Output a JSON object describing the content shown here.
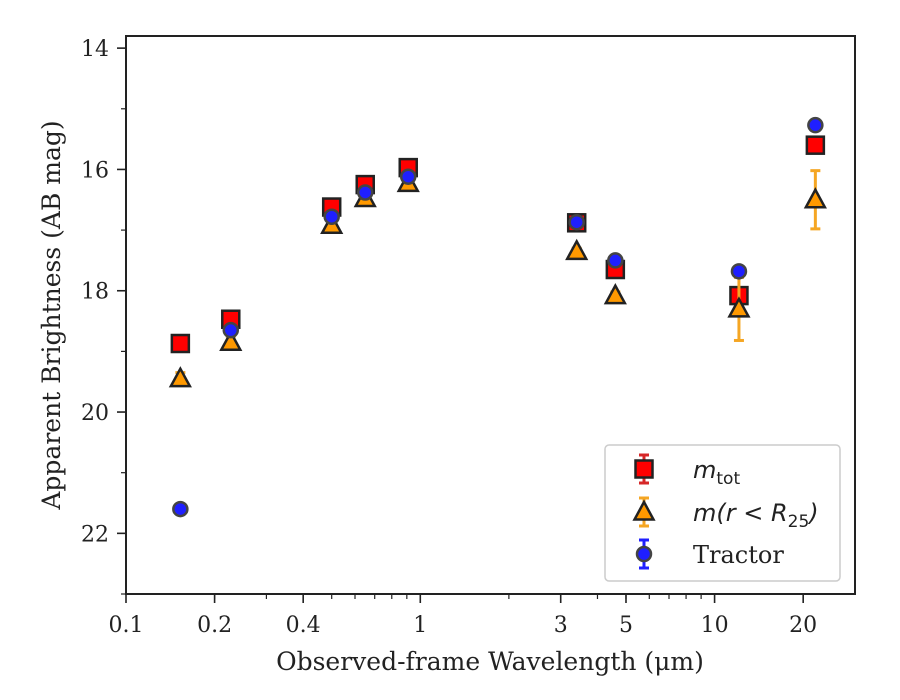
{
  "chart_data": {
    "type": "scatter",
    "title": "",
    "xlabel": "Observed-frame Wavelength (μm)",
    "ylabel": "Apparent Brightness (AB mag)",
    "xscale": "log",
    "xlim": [
      0.1,
      30
    ],
    "ylim": [
      23,
      13.8
    ],
    "y_inverted": true,
    "grid": false,
    "legend_position": "lower-right",
    "x_ticks": [
      {
        "value": 0.1,
        "label": "0.1"
      },
      {
        "value": 0.2,
        "label": "0.2"
      },
      {
        "value": 0.4,
        "label": "0.4"
      },
      {
        "value": 1,
        "label": "1"
      },
      {
        "value": 3,
        "label": "3"
      },
      {
        "value": 5,
        "label": "5"
      },
      {
        "value": 10,
        "label": "10"
      },
      {
        "value": 20,
        "label": "20"
      }
    ],
    "y_ticks": [
      {
        "value": 14,
        "label": "14"
      },
      {
        "value": 16,
        "label": "16"
      },
      {
        "value": 18,
        "label": "18"
      },
      {
        "value": 20,
        "label": "20"
      },
      {
        "value": 22,
        "label": "22"
      }
    ],
    "series": [
      {
        "name": "m_tot",
        "legend_main": "m",
        "legend_sub": "tot",
        "marker": "square",
        "color": "#ff0000",
        "edge_color": "#222222",
        "errorbar_color": "#d62728",
        "points": [
          {
            "x": 0.153,
            "y": 18.87,
            "err": 0.08
          },
          {
            "x": 0.227,
            "y": 18.47,
            "err": 0.08
          },
          {
            "x": 0.5,
            "y": 16.62,
            "err": 0.06
          },
          {
            "x": 0.65,
            "y": 16.25,
            "err": 0.06
          },
          {
            "x": 0.91,
            "y": 15.97,
            "err": 0.06
          },
          {
            "x": 3.4,
            "y": 16.88,
            "err": 0.05
          },
          {
            "x": 4.6,
            "y": 17.65,
            "err": 0.08
          },
          {
            "x": 12.1,
            "y": 18.08,
            "err": 0.1
          },
          {
            "x": 22.0,
            "y": 15.6,
            "err": 0.08
          }
        ]
      },
      {
        "name": "m(r < R_25)",
        "legend_main": "m(r < R",
        "legend_sub": "25",
        "legend_close": ")",
        "marker": "triangle",
        "color": "#ff9900",
        "edge_color": "#222222",
        "errorbar_color": "#f5a623",
        "points": [
          {
            "x": 0.153,
            "y": 19.45,
            "err": 0.1
          },
          {
            "x": 0.227,
            "y": 18.85,
            "err": 0.1
          },
          {
            "x": 0.5,
            "y": 16.92,
            "err": 0.06
          },
          {
            "x": 0.65,
            "y": 16.48,
            "err": 0.06
          },
          {
            "x": 0.91,
            "y": 16.23,
            "err": 0.06
          },
          {
            "x": 3.4,
            "y": 17.35,
            "err": 0.05
          },
          {
            "x": 4.6,
            "y": 18.08,
            "err": 0.06
          },
          {
            "x": 12.1,
            "y": 18.3,
            "err": 0.52
          },
          {
            "x": 22.0,
            "y": 16.5,
            "err": 0.48
          }
        ]
      },
      {
        "name": "Tractor",
        "legend_main": "Tractor",
        "marker": "circle",
        "color": "#1f1fff",
        "edge_color": "#444444",
        "errorbar_color": "#1f1fff",
        "points": [
          {
            "x": 0.153,
            "y": 21.6,
            "err": 0.06
          },
          {
            "x": 0.227,
            "y": 18.65,
            "err": 0.06
          },
          {
            "x": 0.5,
            "y": 16.78,
            "err": 0.05
          },
          {
            "x": 0.65,
            "y": 16.38,
            "err": 0.05
          },
          {
            "x": 0.91,
            "y": 16.12,
            "err": 0.05
          },
          {
            "x": 3.4,
            "y": 16.87,
            "err": 0.05
          },
          {
            "x": 4.6,
            "y": 17.5,
            "err": 0.06
          },
          {
            "x": 12.1,
            "y": 17.68,
            "err": 0.08
          },
          {
            "x": 22.0,
            "y": 15.27,
            "err": 0.06
          }
        ]
      }
    ]
  }
}
